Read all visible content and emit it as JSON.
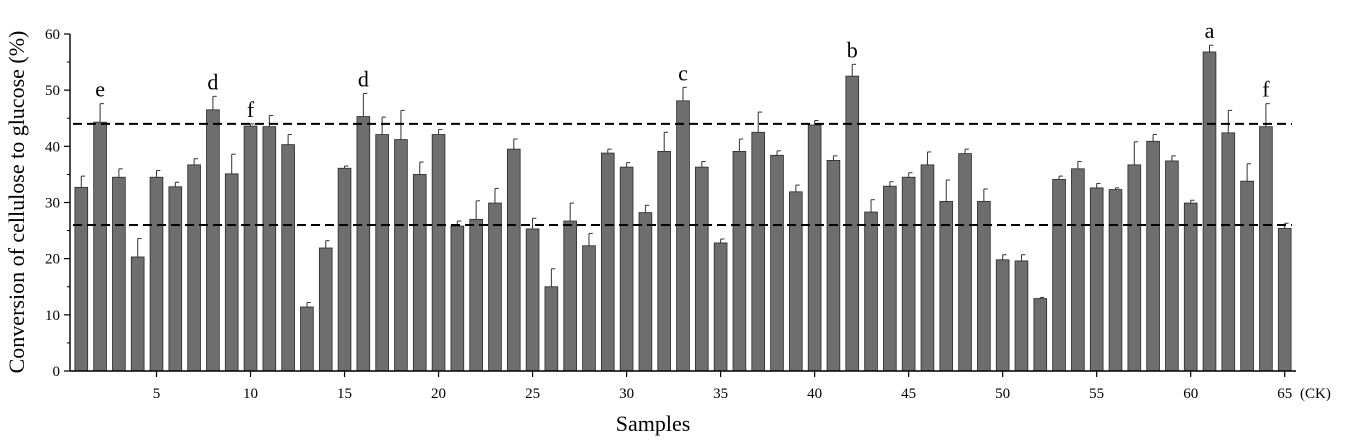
{
  "chart_data": {
    "type": "bar",
    "xlabel": "Samples",
    "ylabel": "Conversion of cellulose to glucose (%)",
    "ylim": [
      0,
      60
    ],
    "yticks": [
      0,
      10,
      20,
      30,
      40,
      50,
      60
    ],
    "xticks": [
      5,
      10,
      15,
      20,
      25,
      30,
      35,
      40,
      45,
      50,
      55,
      60,
      65
    ],
    "x_suffix": "(CK)",
    "bar_color": "#6e6e6e",
    "grid": false,
    "reference_lines": [
      44,
      26
    ],
    "categories": [
      1,
      2,
      3,
      4,
      5,
      6,
      7,
      8,
      9,
      10,
      11,
      12,
      13,
      14,
      15,
      16,
      17,
      18,
      19,
      20,
      21,
      22,
      23,
      24,
      25,
      26,
      27,
      28,
      29,
      30,
      31,
      32,
      33,
      34,
      35,
      36,
      37,
      38,
      39,
      40,
      41,
      42,
      43,
      44,
      45,
      46,
      47,
      48,
      49,
      50,
      51,
      52,
      53,
      54,
      55,
      56,
      57,
      58,
      59,
      60,
      61,
      62,
      63,
      64,
      65
    ],
    "values": [
      32.7,
      44.3,
      34.5,
      20.3,
      34.5,
      32.8,
      36.7,
      46.5,
      35.1,
      43.6,
      43.5,
      40.3,
      11.4,
      21.9,
      36.1,
      45.3,
      42.1,
      41.2,
      35.0,
      42.1,
      25.8,
      27.0,
      29.9,
      39.5,
      25.3,
      15.0,
      26.7,
      22.3,
      38.8,
      36.3,
      28.2,
      39.1,
      48.1,
      36.3,
      22.8,
      39.1,
      42.5,
      38.4,
      31.9,
      43.8,
      37.5,
      52.5,
      28.3,
      32.9,
      34.5,
      36.7,
      30.2,
      38.7,
      30.2,
      19.8,
      19.6,
      12.9,
      34.1,
      36.0,
      32.6,
      32.3,
      36.7,
      40.9,
      37.4,
      29.9,
      56.8,
      42.4,
      33.8,
      43.5,
      25.4
    ],
    "errors": [
      2.0,
      3.3,
      1.5,
      3.3,
      1.2,
      0.8,
      1.1,
      2.4,
      3.5,
      0.4,
      2.0,
      1.8,
      0.8,
      1.3,
      0.4,
      4.1,
      3.1,
      5.2,
      2.2,
      0.9,
      0.9,
      3.3,
      2.6,
      1.8,
      1.9,
      3.2,
      3.2,
      2.2,
      0.7,
      0.8,
      1.3,
      3.4,
      2.4,
      1.0,
      0.7,
      2.2,
      3.6,
      0.8,
      1.2,
      0.8,
      0.8,
      2.1,
      2.2,
      0.8,
      0.8,
      2.3,
      3.8,
      0.8,
      2.2,
      0.9,
      1.1,
      0.2,
      0.6,
      1.3,
      0.8,
      0.3,
      4.1,
      1.2,
      0.9,
      0.5,
      1.2,
      4.0,
      3.1,
      4.1,
      0.9
    ],
    "annotations": [
      {
        "sample": 2,
        "text": "e"
      },
      {
        "sample": 8,
        "text": "d"
      },
      {
        "sample": 10,
        "text": "f"
      },
      {
        "sample": 16,
        "text": "d"
      },
      {
        "sample": 33,
        "text": "c"
      },
      {
        "sample": 42,
        "text": "b"
      },
      {
        "sample": 61,
        "text": "a"
      },
      {
        "sample": 64,
        "text": "f"
      }
    ]
  }
}
